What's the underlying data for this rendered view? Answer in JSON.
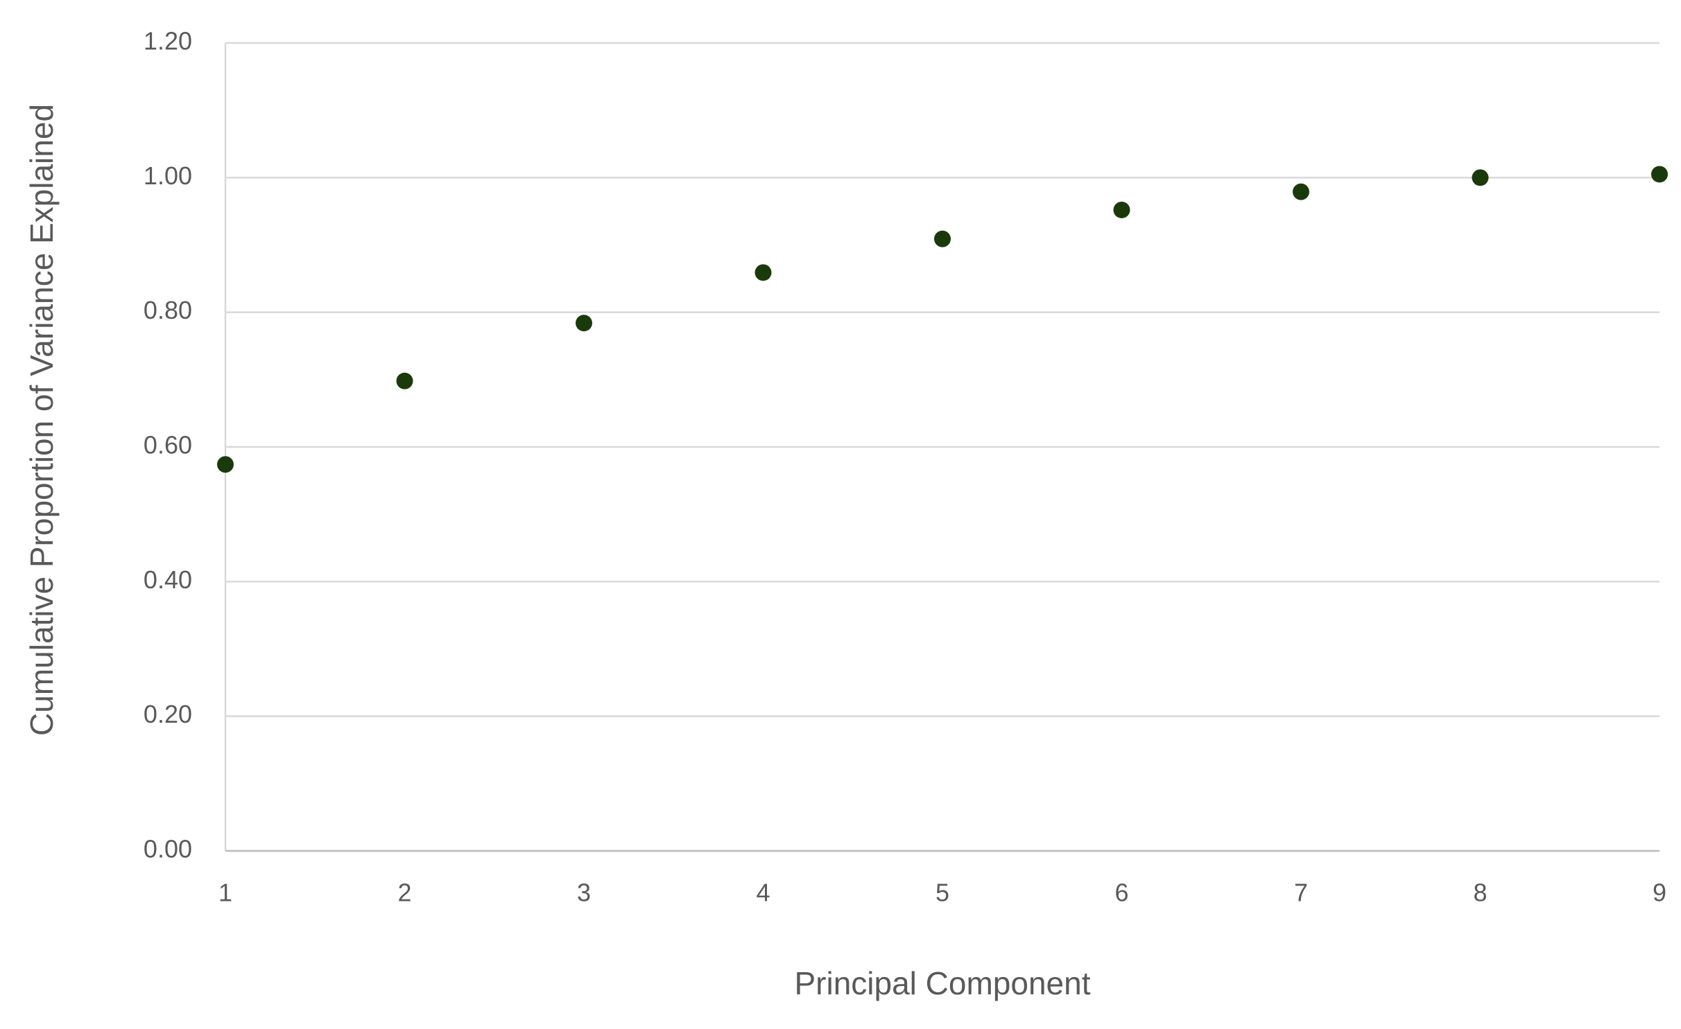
{
  "chart_data": {
    "type": "scatter",
    "x_label": "Principal Component",
    "y_label": "Cumulative Proportion of Variance Explained",
    "x": [
      1,
      2,
      3,
      4,
      5,
      6,
      7,
      8,
      9
    ],
    "values": [
      0.574,
      0.698,
      0.784,
      0.859,
      0.909,
      0.952,
      0.979,
      1.0,
      1.005
    ],
    "color": "#1b3a0c",
    "xlim": [
      1,
      9
    ],
    "xticks": [
      1,
      2,
      3,
      4,
      5,
      6,
      7,
      8,
      9
    ],
    "ylim": [
      0,
      1.2
    ],
    "yticks": [
      {
        "value": 0,
        "label": "0.00"
      },
      {
        "value": 0.2,
        "label": "0.20"
      },
      {
        "value": 0.4,
        "label": "0.40"
      },
      {
        "value": 0.6,
        "label": "0.60"
      },
      {
        "value": 0.8,
        "label": "0.80"
      },
      {
        "value": 1.0,
        "label": "1.00"
      },
      {
        "value": 1.2,
        "label": "1.20"
      }
    ],
    "grid": true
  }
}
